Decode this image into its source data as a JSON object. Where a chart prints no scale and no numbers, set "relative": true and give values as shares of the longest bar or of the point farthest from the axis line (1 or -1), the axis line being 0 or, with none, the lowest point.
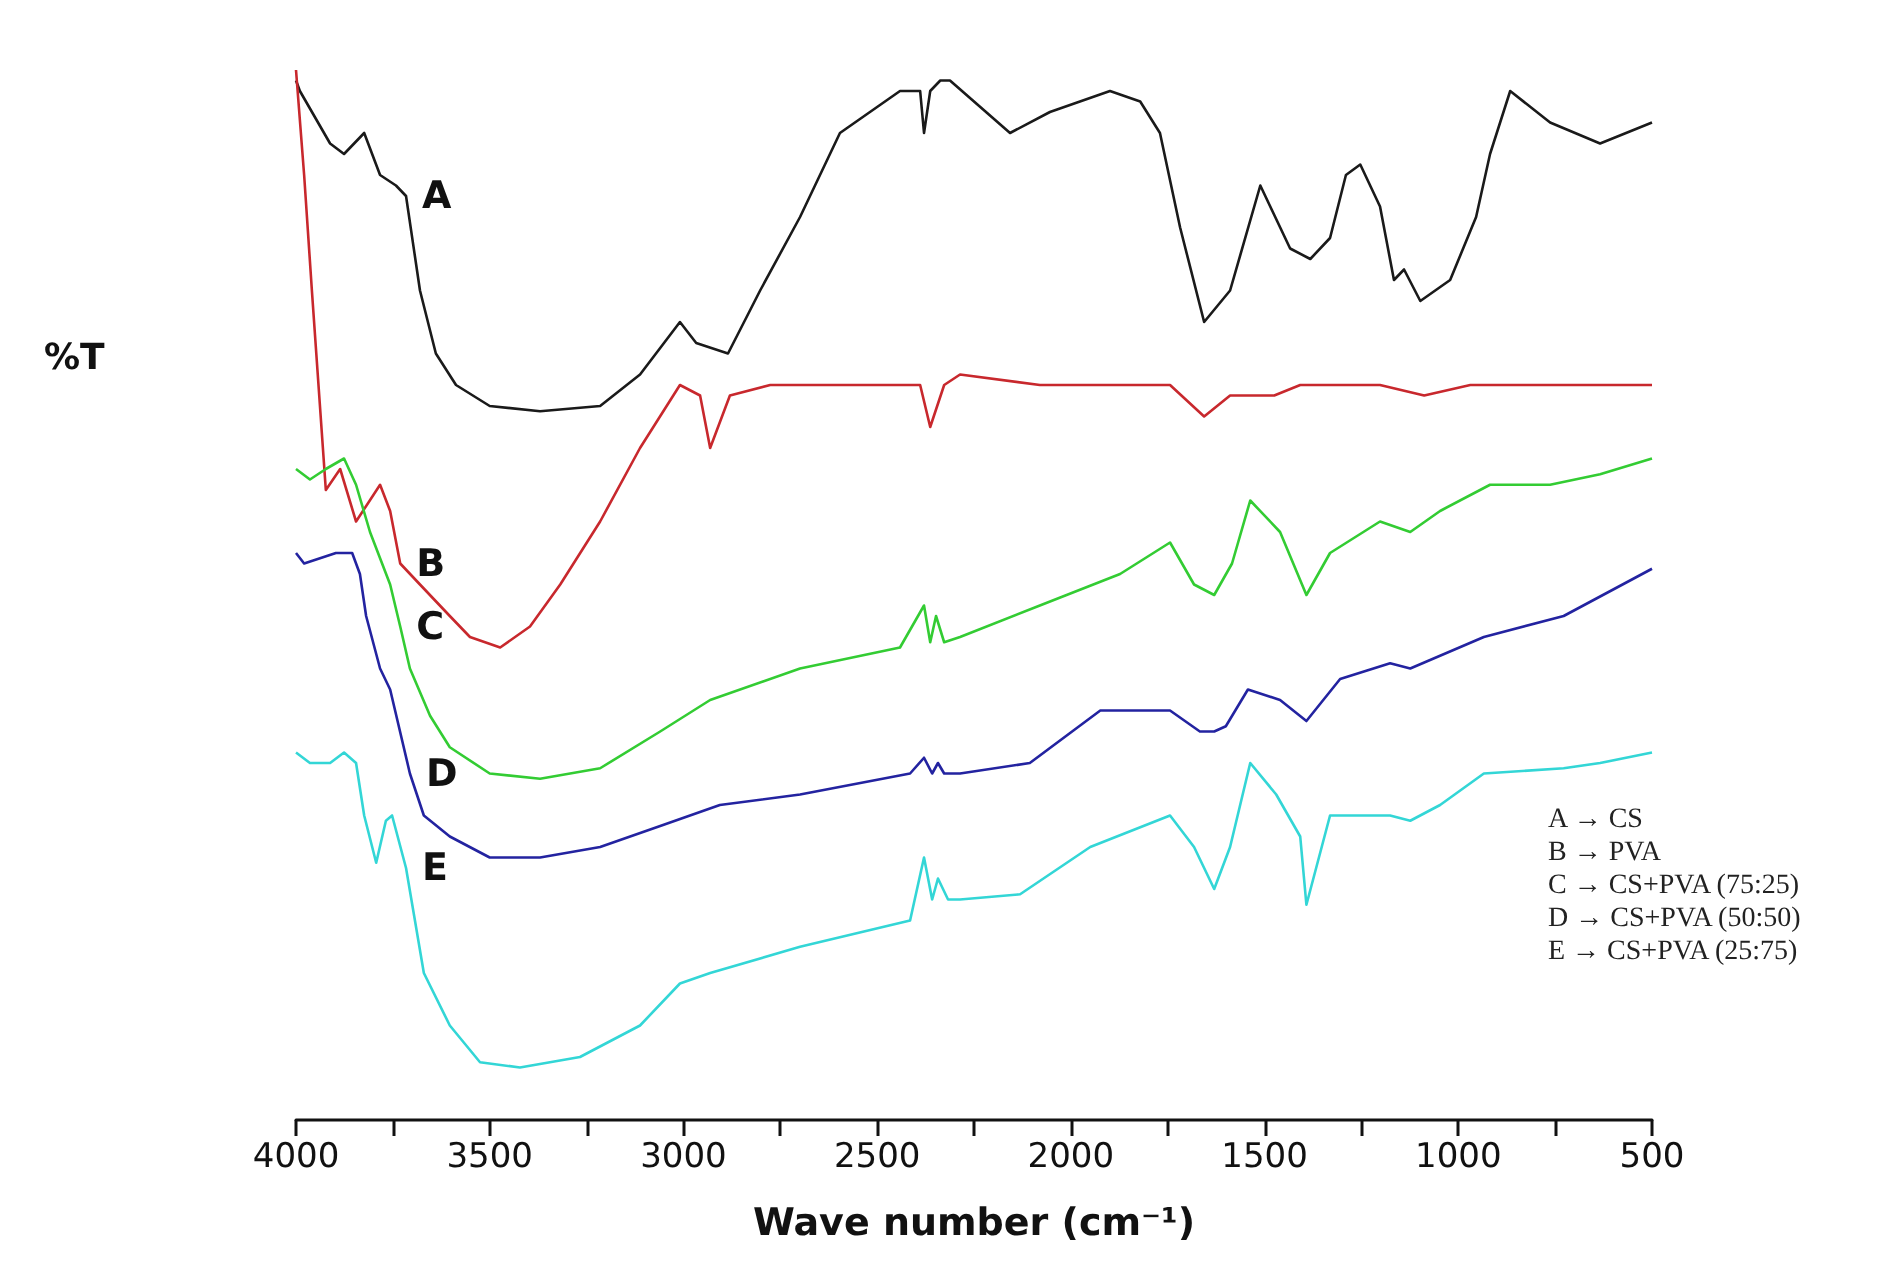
{
  "chart_data": {
    "type": "line",
    "relative": true,
    "xlabel": "Wave number (cm⁻¹)",
    "ylabel": "%T",
    "xlim": [
      4000,
      500
    ],
    "xticks": [
      4000,
      {
        "value": 3750,
        "label": null
      },
      3500,
      {
        "value": 3250,
        "label": null
      },
      3000,
      {
        "value": 2750,
        "label": null
      },
      2500,
      {
        "value": 2250,
        "label": null
      },
      2000,
      {
        "value": 1750,
        "label": null
      },
      1500,
      {
        "value": 1250,
        "label": null
      },
      1000,
      {
        "value": 750,
        "label": null
      },
      500
    ],
    "grid": false,
    "series": [
      {
        "name": "A",
        "color": "#1a1a1a",
        "x": [
          4000,
          3990,
          3912,
          3876,
          3824,
          3783,
          3742,
          3716,
          3680,
          3639,
          3587,
          3500,
          3370,
          3215,
          3112,
          3009,
          2967,
          2885,
          2802,
          2699,
          2596,
          2441,
          2389,
          2379,
          2363,
          2337,
          2312,
          2157,
          2054,
          1899,
          1821,
          1770,
          1718,
          1656,
          1589,
          1511,
          1434,
          1382,
          1331,
          1290,
          1253,
          1202,
          1166,
          1140,
          1098,
          1021,
          954,
          918,
          866,
          763,
          634,
          500
        ],
        "values": [
          0.99,
          0.98,
          0.93,
          0.92,
          0.94,
          0.9,
          0.89,
          0.88,
          0.79,
          0.73,
          0.7,
          0.68,
          0.675,
          0.68,
          0.71,
          0.76,
          0.74,
          0.73,
          0.79,
          0.86,
          0.94,
          0.98,
          0.98,
          0.94,
          0.98,
          0.99,
          0.99,
          0.94,
          0.96,
          0.98,
          0.97,
          0.94,
          0.85,
          0.76,
          0.79,
          0.89,
          0.83,
          0.82,
          0.84,
          0.9,
          0.91,
          0.87,
          0.8,
          0.81,
          0.78,
          0.8,
          0.86,
          0.92,
          0.98,
          0.95,
          0.93,
          0.95
        ]
      },
      {
        "name": "B",
        "color": "#c8282d",
        "x": [
          4000,
          3979,
          3959,
          3923,
          3886,
          3845,
          3783,
          3757,
          3731,
          3680,
          3603,
          3551,
          3473,
          3396,
          3318,
          3215,
          3112,
          3009,
          2957,
          2931,
          2880,
          2776,
          2596,
          2415,
          2389,
          2363,
          2327,
          2286,
          2080,
          1873,
          1744,
          1656,
          1589,
          1475,
          1408,
          1202,
          1088,
          969,
          500
        ],
        "values": [
          1.0,
          0.9,
          0.79,
          0.6,
          0.62,
          0.57,
          0.605,
          0.58,
          0.53,
          0.51,
          0.48,
          0.46,
          0.45,
          0.47,
          0.51,
          0.57,
          0.64,
          0.7,
          0.69,
          0.64,
          0.69,
          0.7,
          0.7,
          0.7,
          0.7,
          0.66,
          0.7,
          0.71,
          0.7,
          0.7,
          0.7,
          0.67,
          0.69,
          0.69,
          0.7,
          0.7,
          0.69,
          0.7,
          0.7
        ]
      },
      {
        "name": "C",
        "color": "#33cc33",
        "x": [
          4000,
          3964,
          3923,
          3876,
          3845,
          3809,
          3757,
          3731,
          3706,
          3654,
          3603,
          3500,
          3370,
          3215,
          3060,
          2931,
          2699,
          2441,
          2379,
          2363,
          2348,
          2327,
          2286,
          2080,
          1873,
          1744,
          1682,
          1630,
          1584,
          1537,
          1460,
          1392,
          1331,
          1202,
          1124,
          1047,
          918,
          763,
          634,
          500
        ],
        "values": [
          0.62,
          0.61,
          0.62,
          0.63,
          0.605,
          0.56,
          0.51,
          0.47,
          0.43,
          0.385,
          0.355,
          0.33,
          0.325,
          0.335,
          0.37,
          0.4,
          0.43,
          0.45,
          0.49,
          0.455,
          0.48,
          0.455,
          0.46,
          0.49,
          0.52,
          0.55,
          0.51,
          0.5,
          0.53,
          0.59,
          0.56,
          0.5,
          0.54,
          0.57,
          0.56,
          0.58,
          0.605,
          0.605,
          0.615,
          0.63
        ]
      },
      {
        "name": "D",
        "color": "#2323a0",
        "x": [
          4000,
          3979,
          3938,
          3897,
          3855,
          3835,
          3819,
          3783,
          3757,
          3706,
          3670,
          3603,
          3500,
          3370,
          3215,
          3060,
          2906,
          2699,
          2415,
          2379,
          2358,
          2343,
          2327,
          2286,
          2106,
          1924,
          1744,
          1667,
          1630,
          1600,
          1543,
          1460,
          1392,
          1305,
          1176,
          1124,
          934,
          728,
          500
        ],
        "values": [
          0.54,
          0.53,
          0.535,
          0.54,
          0.54,
          0.52,
          0.48,
          0.43,
          0.41,
          0.33,
          0.29,
          0.27,
          0.25,
          0.25,
          0.26,
          0.28,
          0.3,
          0.31,
          0.33,
          0.345,
          0.33,
          0.34,
          0.33,
          0.33,
          0.34,
          0.39,
          0.39,
          0.37,
          0.37,
          0.375,
          0.41,
          0.4,
          0.38,
          0.42,
          0.435,
          0.43,
          0.46,
          0.48,
          0.525
        ]
      },
      {
        "name": "E",
        "color": "#33d6d6",
        "x": [
          4000,
          3964,
          3912,
          3876,
          3845,
          3824,
          3793,
          3768,
          3752,
          3716,
          3670,
          3603,
          3525,
          3422,
          3267,
          3112,
          3009,
          2931,
          2699,
          2415,
          2379,
          2358,
          2343,
          2317,
          2286,
          2131,
          1950,
          1744,
          1682,
          1630,
          1589,
          1537,
          1470,
          1408,
          1392,
          1331,
          1176,
          1124,
          1047,
          934,
          728,
          634,
          500
        ],
        "values": [
          0.35,
          0.34,
          0.34,
          0.35,
          0.34,
          0.29,
          0.245,
          0.285,
          0.29,
          0.24,
          0.14,
          0.09,
          0.055,
          0.05,
          0.06,
          0.09,
          0.13,
          0.14,
          0.165,
          0.19,
          0.25,
          0.21,
          0.23,
          0.21,
          0.21,
          0.215,
          0.26,
          0.29,
          0.26,
          0.22,
          0.26,
          0.34,
          0.31,
          0.27,
          0.205,
          0.29,
          0.29,
          0.285,
          0.3,
          0.33,
          0.335,
          0.34,
          0.35
        ]
      }
    ],
    "annotations": [
      "A → CS",
      "B → PVA",
      "C → CS+PVA (75:25)",
      "D → CS+PVA (50:50)",
      "E → CS+PVA (25:75)"
    ]
  }
}
